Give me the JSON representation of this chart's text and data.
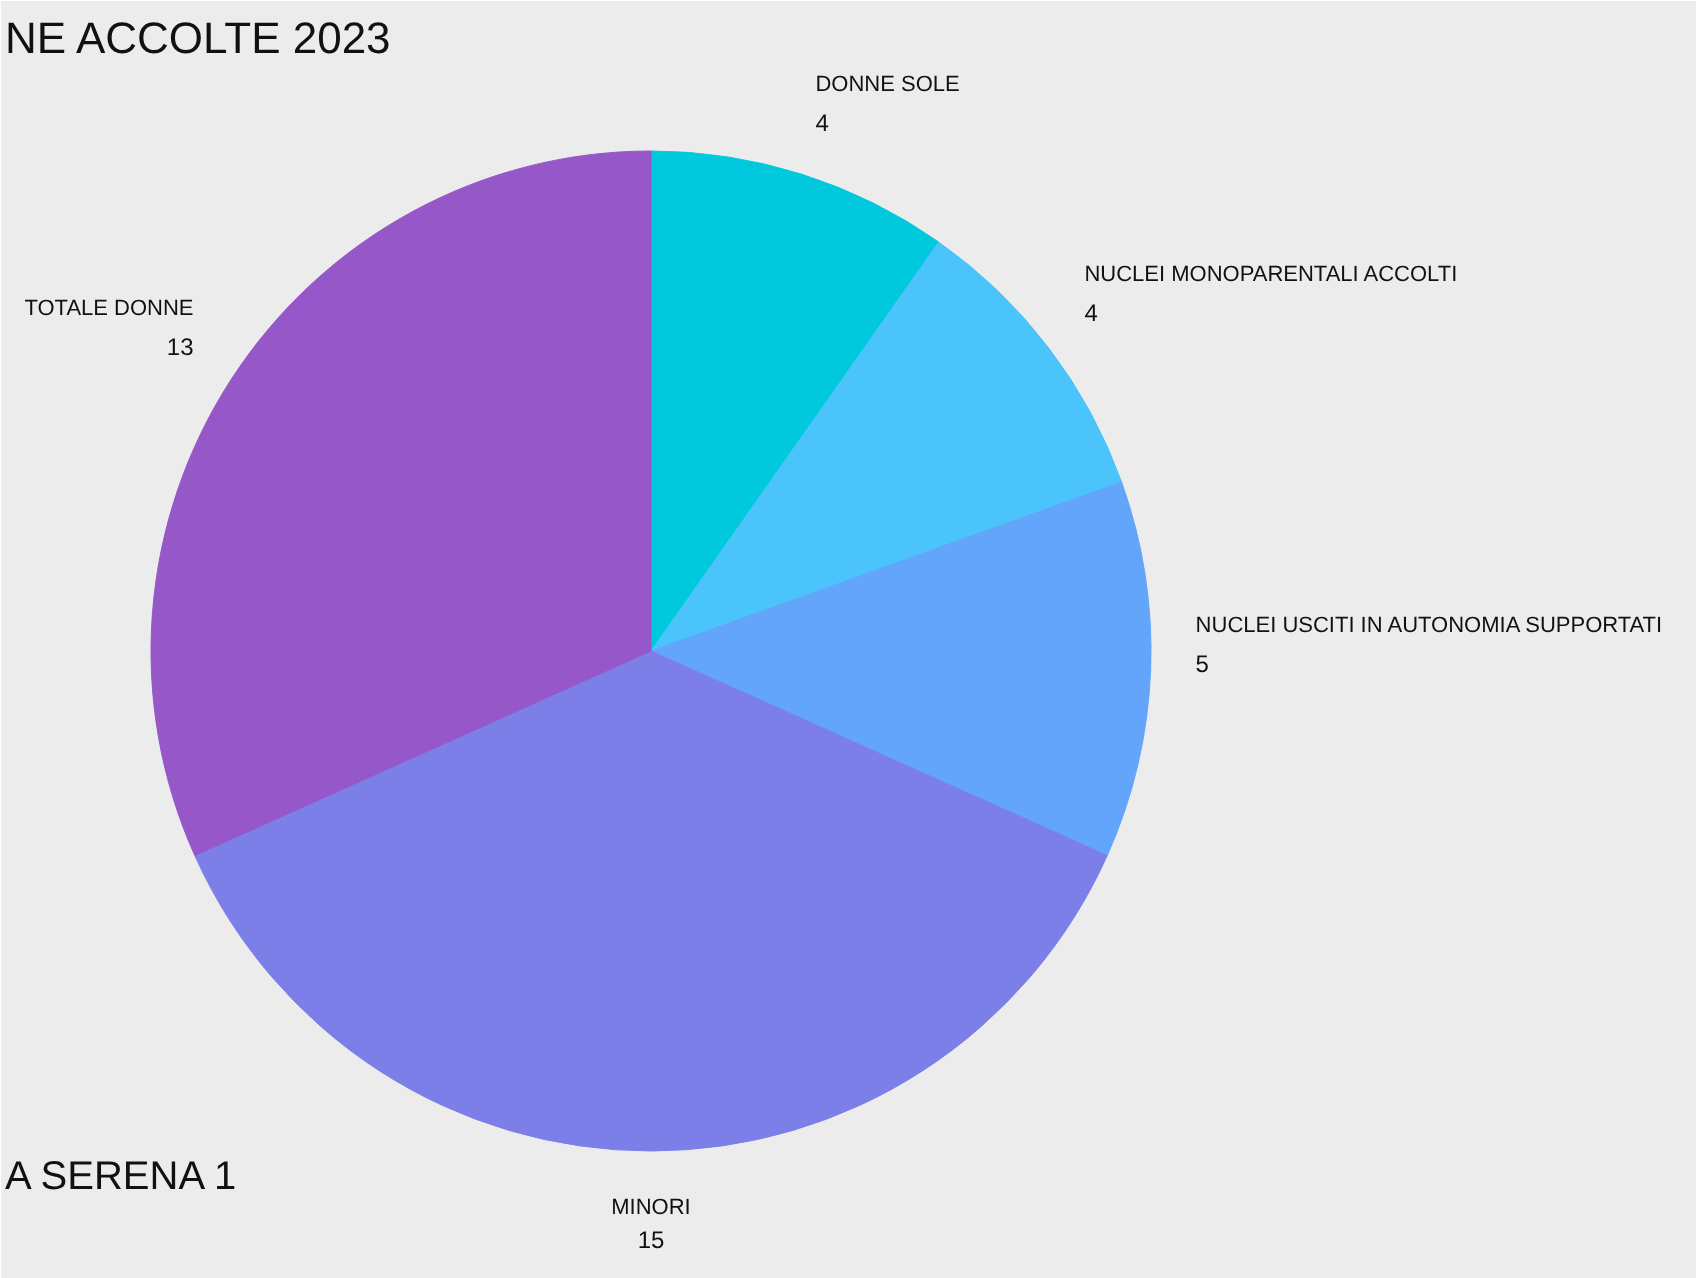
{
  "chart_data": {
    "type": "pie",
    "title": "NE ACCOLTE 2023",
    "categories": [
      "DONNE SOLE",
      "NUCLEI MONOPARENTALI ACCOLTI",
      "NUCLEI USCITI IN AUTONOMIA SUPPORTATI",
      "MINORI",
      "TOTALE DONNE"
    ],
    "values": [
      4,
      4,
      5,
      15,
      13
    ],
    "colors": [
      "#00c9dd",
      "#4ac4fa",
      "#63a5fb",
      "#7c7fe8",
      "#9657c9"
    ],
    "data_labels": true,
    "annotations": [
      "A SERENA 1"
    ],
    "legend": false
  }
}
